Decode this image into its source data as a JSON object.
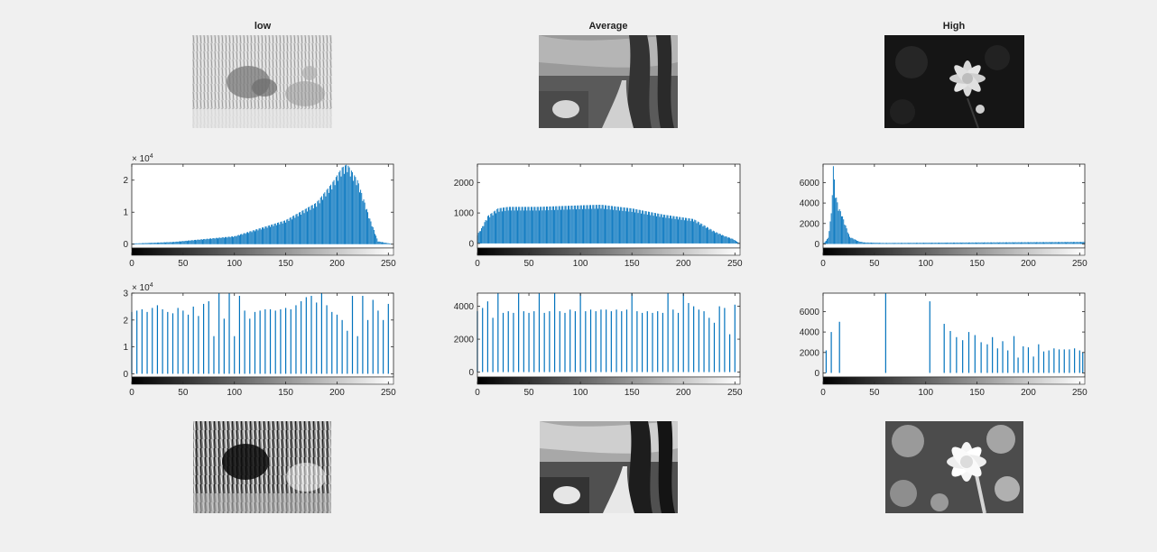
{
  "figure": {
    "columns": [
      {
        "key": "low",
        "title": "low"
      },
      {
        "key": "avg",
        "title": "Average"
      },
      {
        "key": "high",
        "title": "High"
      }
    ]
  },
  "colors": {
    "bar": "#0072bd",
    "axis": "#262626",
    "background": "#f0f0f0"
  },
  "chart_data": [
    {
      "id": "low-original-hist",
      "type": "bar",
      "title": "",
      "xlabel": "",
      "ylabel": "",
      "xlim": [
        0,
        255
      ],
      "ylim": [
        -1200,
        25000
      ],
      "xticks": [
        0,
        50,
        100,
        150,
        200,
        250
      ],
      "xtick_labels": [
        "0",
        "50",
        "100",
        "150",
        "200",
        "250"
      ],
      "yticks": [
        0,
        10000,
        20000
      ],
      "ytick_labels": [
        "0",
        "1",
        "2"
      ],
      "y_exponent_base": "× 10",
      "y_exponent_power": "4",
      "profile_description_points_x": [
        0,
        40,
        100,
        150,
        180,
        195,
        205,
        210,
        220,
        232,
        240,
        255
      ],
      "profile_description_points_y": [
        200,
        700,
        2500,
        7500,
        13000,
        19000,
        24000,
        25000,
        20000,
        8000,
        900,
        0
      ]
    },
    {
      "id": "avg-original-hist",
      "type": "bar",
      "title": "",
      "xlabel": "",
      "ylabel": "",
      "xlim": [
        0,
        255
      ],
      "ylim": [
        -150,
        2600
      ],
      "xticks": [
        0,
        50,
        100,
        150,
        200,
        250
      ],
      "xtick_labels": [
        "0",
        "50",
        "100",
        "150",
        "200",
        "250"
      ],
      "yticks": [
        0,
        1000,
        2000
      ],
      "ytick_labels": [
        "0",
        "1000",
        "2000"
      ],
      "profile_description_points_x": [
        0,
        4,
        10,
        20,
        30,
        60,
        100,
        120,
        150,
        180,
        210,
        230,
        240,
        248,
        255
      ],
      "profile_description_points_y": [
        300,
        500,
        900,
        1150,
        1200,
        1200,
        1250,
        1270,
        1150,
        950,
        800,
        400,
        250,
        150,
        0
      ]
    },
    {
      "id": "high-original-hist",
      "type": "bar",
      "title": "",
      "xlabel": "",
      "ylabel": "",
      "xlim": [
        0,
        255
      ],
      "ylim": [
        -400,
        7800
      ],
      "xticks": [
        0,
        50,
        100,
        150,
        200,
        250
      ],
      "xtick_labels": [
        "0",
        "50",
        "100",
        "150",
        "200",
        "250"
      ],
      "yticks": [
        0,
        2000,
        4000,
        6000
      ],
      "ytick_labels": [
        "0",
        "2000",
        "4000",
        "6000"
      ],
      "profile_description_points_x": [
        0,
        5,
        8,
        10,
        12,
        15,
        18,
        22,
        26,
        30,
        35,
        40,
        60,
        255
      ],
      "profile_description_points_y": [
        0,
        600,
        3000,
        7600,
        5000,
        3600,
        3000,
        1800,
        700,
        500,
        250,
        150,
        100,
        200
      ]
    },
    {
      "id": "low-equalized-hist",
      "type": "stem",
      "title": "",
      "xlim": [
        0,
        255
      ],
      "ylim": [
        -1200,
        30000
      ],
      "xticks": [
        0,
        50,
        100,
        150,
        200,
        250
      ],
      "xtick_labels": [
        "0",
        "50",
        "100",
        "150",
        "200",
        "250"
      ],
      "yticks": [
        0,
        10000,
        20000,
        30000
      ],
      "ytick_labels": [
        "0",
        "1",
        "2",
        "3"
      ],
      "y_exponent_base": "× 10",
      "y_exponent_power": "4",
      "stems": [
        [
          0,
          23000
        ],
        [
          5,
          23500
        ],
        [
          10,
          24000
        ],
        [
          15,
          23000
        ],
        [
          20,
          24500
        ],
        [
          25,
          25500
        ],
        [
          30,
          24000
        ],
        [
          35,
          23000
        ],
        [
          40,
          22500
        ],
        [
          45,
          24500
        ],
        [
          50,
          23500
        ],
        [
          55,
          22000
        ],
        [
          60,
          25000
        ],
        [
          65,
          21500
        ],
        [
          70,
          26000
        ],
        [
          75,
          27000
        ],
        [
          80,
          14000
        ],
        [
          85,
          30000
        ],
        [
          90,
          20500
        ],
        [
          95,
          30000
        ],
        [
          100,
          14000
        ],
        [
          105,
          29000
        ],
        [
          110,
          23500
        ],
        [
          115,
          20500
        ],
        [
          120,
          23000
        ],
        [
          125,
          23500
        ],
        [
          130,
          24000
        ],
        [
          135,
          24000
        ],
        [
          140,
          23500
        ],
        [
          145,
          24000
        ],
        [
          150,
          24500
        ],
        [
          155,
          24000
        ],
        [
          160,
          25500
        ],
        [
          165,
          27000
        ],
        [
          170,
          28500
        ],
        [
          175,
          29000
        ],
        [
          180,
          26500
        ],
        [
          185,
          30000
        ],
        [
          190,
          25500
        ],
        [
          195,
          23000
        ],
        [
          200,
          22000
        ],
        [
          205,
          20000
        ],
        [
          210,
          16000
        ],
        [
          215,
          29000
        ],
        [
          220,
          14000
        ],
        [
          225,
          29000
        ],
        [
          230,
          20000
        ],
        [
          235,
          27500
        ],
        [
          240,
          23500
        ],
        [
          245,
          20000
        ],
        [
          250,
          26000
        ]
      ]
    },
    {
      "id": "avg-equalized-hist",
      "type": "stem",
      "title": "",
      "xlim": [
        0,
        255
      ],
      "ylim": [
        -300,
        4800
      ],
      "xticks": [
        0,
        50,
        100,
        150,
        200,
        250
      ],
      "xtick_labels": [
        "0",
        "50",
        "100",
        "150",
        "200",
        "250"
      ],
      "yticks": [
        0,
        2000,
        4000
      ],
      "ytick_labels": [
        "0",
        "2000",
        "4000"
      ],
      "stems": [
        [
          0,
          3700
        ],
        [
          5,
          3900
        ],
        [
          10,
          4300
        ],
        [
          15,
          3300
        ],
        [
          20,
          4800
        ],
        [
          25,
          3600
        ],
        [
          30,
          3700
        ],
        [
          35,
          3600
        ],
        [
          40,
          4800
        ],
        [
          45,
          3700
        ],
        [
          50,
          3600
        ],
        [
          55,
          3700
        ],
        [
          60,
          4800
        ],
        [
          65,
          3600
        ],
        [
          70,
          3700
        ],
        [
          75,
          4800
        ],
        [
          80,
          3700
        ],
        [
          85,
          3600
        ],
        [
          90,
          3800
        ],
        [
          95,
          3700
        ],
        [
          100,
          4800
        ],
        [
          105,
          3700
        ],
        [
          110,
          3800
        ],
        [
          115,
          3700
        ],
        [
          120,
          3800
        ],
        [
          125,
          3800
        ],
        [
          130,
          3700
        ],
        [
          135,
          3800
        ],
        [
          140,
          3700
        ],
        [
          145,
          3800
        ],
        [
          150,
          4800
        ],
        [
          155,
          3700
        ],
        [
          160,
          3600
        ],
        [
          165,
          3700
        ],
        [
          170,
          3600
        ],
        [
          175,
          3700
        ],
        [
          180,
          3600
        ],
        [
          185,
          4800
        ],
        [
          190,
          3800
        ],
        [
          195,
          3600
        ],
        [
          200,
          4800
        ],
        [
          205,
          4200
        ],
        [
          210,
          4000
        ],
        [
          215,
          3800
        ],
        [
          220,
          3700
        ],
        [
          225,
          3300
        ],
        [
          230,
          3000
        ],
        [
          235,
          4000
        ],
        [
          240,
          3900
        ],
        [
          245,
          2300
        ],
        [
          250,
          4100
        ]
      ]
    },
    {
      "id": "high-equalized-hist",
      "type": "stem",
      "title": "",
      "xlim": [
        0,
        255
      ],
      "ylim": [
        -400,
        7800
      ],
      "xticks": [
        0,
        50,
        100,
        150,
        200,
        250
      ],
      "xtick_labels": [
        "0",
        "50",
        "100",
        "150",
        "200",
        "250"
      ],
      "yticks": [
        0,
        2000,
        4000,
        6000
      ],
      "ytick_labels": [
        "0",
        "2000",
        "4000",
        "6000"
      ],
      "stems": [
        [
          3,
          2200
        ],
        [
          8,
          4000
        ],
        [
          16,
          5000
        ],
        [
          61,
          7800
        ],
        [
          104,
          7000
        ],
        [
          118,
          4800
        ],
        [
          124,
          4100
        ],
        [
          130,
          3500
        ],
        [
          136,
          3200
        ],
        [
          142,
          4000
        ],
        [
          148,
          3700
        ],
        [
          154,
          3000
        ],
        [
          160,
          2800
        ],
        [
          165,
          3500
        ],
        [
          170,
          2400
        ],
        [
          175,
          3100
        ],
        [
          180,
          2200
        ],
        [
          186,
          3600
        ],
        [
          190,
          1500
        ],
        [
          195,
          2600
        ],
        [
          200,
          2500
        ],
        [
          205,
          1600
        ],
        [
          210,
          2800
        ],
        [
          215,
          2100
        ],
        [
          220,
          2200
        ],
        [
          225,
          2400
        ],
        [
          230,
          2300
        ],
        [
          235,
          2300
        ],
        [
          240,
          2300
        ],
        [
          245,
          2400
        ],
        [
          250,
          2200
        ],
        [
          253,
          2000
        ]
      ]
    }
  ]
}
